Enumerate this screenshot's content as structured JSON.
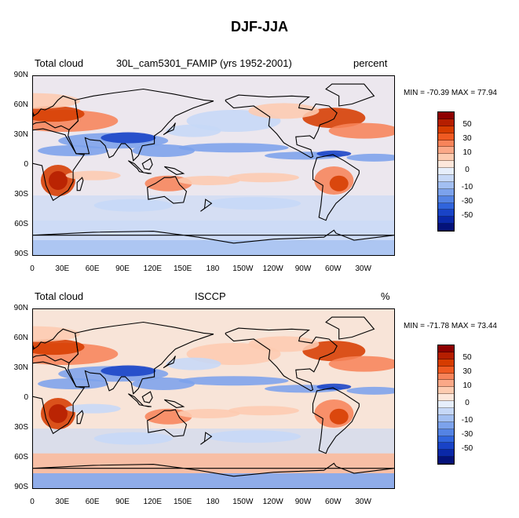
{
  "figure_title": "DJF-JJA",
  "panels": [
    {
      "left_title": "Total cloud",
      "center_title": "30L_cam5301_FAMIP (yrs 1952-2001)",
      "right_title": "percent",
      "min_label": "MIN = -70.39",
      "max_label": "MAX =  77.94"
    },
    {
      "left_title": "Total cloud",
      "center_title": "ISCCP",
      "right_title": "%",
      "min_label": "MIN = -71.78",
      "max_label": "MAX = 73.44"
    }
  ],
  "lat_labels": [
    "90N",
    "60N",
    "30N",
    "0",
    "30S",
    "60S",
    "90S"
  ],
  "lon_labels": [
    "0",
    "30E",
    "60E",
    "90E",
    "120E",
    "150E",
    "180",
    "150W",
    "120W",
    "90W",
    "60W",
    "30W"
  ],
  "colorbar_labels": [
    "50",
    "30",
    "10",
    "0",
    "-10",
    "-30",
    "-50"
  ],
  "colorbar_colors": [
    "#8e0000",
    "#b51e00",
    "#d63c00",
    "#ef5a22",
    "#f7845a",
    "#fba887",
    "#fdcbb0",
    "#fde7db",
    "#e6eefb",
    "#c6d8f7",
    "#a2bff2",
    "#7ca2ec",
    "#5483e4",
    "#3064dc",
    "#1943c6",
    "#0a28a8",
    "#04127a"
  ],
  "colors": {
    "positive_strong": "#d63c00",
    "positive_mid": "#f7845a",
    "positive_weak": "#fdcbb0",
    "negative_weak": "#c6d8f7",
    "negative_mid": "#7ca2ec",
    "negative_strong": "#1943c6",
    "coastline": "#000000"
  }
}
